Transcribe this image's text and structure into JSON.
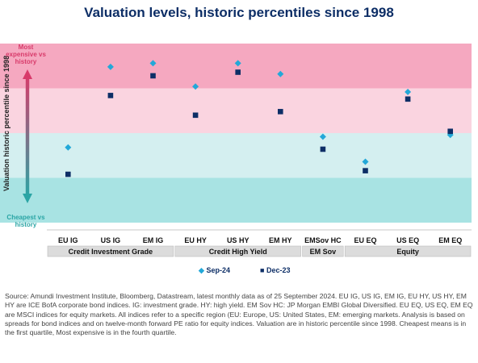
{
  "title": "Valuation levels, historic percentiles since 1998",
  "colors": {
    "band_top": "#f5a8c0",
    "band_upper": "#fad4e0",
    "band_lower": "#d4eff0",
    "band_bottom": "#a8e3e3",
    "sep_marker": "#23a8d8",
    "dec_marker": "#0d2e66",
    "arrow_top": "#d83a6a",
    "arrow_bottom": "#2aa5a5"
  },
  "side_labels": {
    "most": "Most expensive vs history",
    "cheapest": "Cheapest vs history"
  },
  "legend": {
    "sep": "Sep-24",
    "dec": "Dec-23"
  },
  "source": "Source: Amundi Investment Institute, Bloomberg, Datastream, latest monthly data as of 25 September 2024. EU IG, US IG, EM IG, EU HY, US HY, EM HY are ICE BofA corporate bond indices. IG: investment grade. HY: high yield. EM Sov HC: JP Morgan EMBI Global Diversified. EU EQ, US EQ, EM EQ are MSCI indices for equity markets. All indices refer to a specific region (EU: Europe, US: United States, EM: emerging markets. Analysis is based on spreads for bond indices and on twelve-month forward PE ratio for equity indices. Valuation are in historic percentile since 1998. Cheapest means is in the first quartile, Most expensive is in the fourth quartile.",
  "chart_data": {
    "type": "scatter",
    "title": "Valuation levels, historic percentiles since 1998",
    "ylabel": "Valuation historic percentile since 1998",
    "ylim": [
      0,
      100
    ],
    "categories": [
      "EU IG",
      "US IG",
      "EM IG",
      "EU HY",
      "US HY",
      "EM HY",
      "EMSov HC",
      "EU EQ",
      "US EQ",
      "EM EQ"
    ],
    "groups": [
      {
        "name": "Credit Investment Grade",
        "span": 3
      },
      {
        "name": "Credit  High Yield",
        "span": 3
      },
      {
        "name": "EM Sov",
        "span": 1
      },
      {
        "name": "Equity",
        "span": 3
      }
    ],
    "series": [
      {
        "name": "Sep-24",
        "marker": "diamond",
        "values": [
          42,
          87,
          89,
          76,
          89,
          83,
          48,
          34,
          73,
          49
        ]
      },
      {
        "name": "Dec-23",
        "marker": "square",
        "values": [
          27,
          71,
          82,
          60,
          84,
          62,
          41,
          29,
          69,
          51
        ]
      }
    ],
    "bands": [
      0,
      25,
      50,
      75,
      100
    ],
    "grid": false,
    "legend_position": "bottom"
  }
}
